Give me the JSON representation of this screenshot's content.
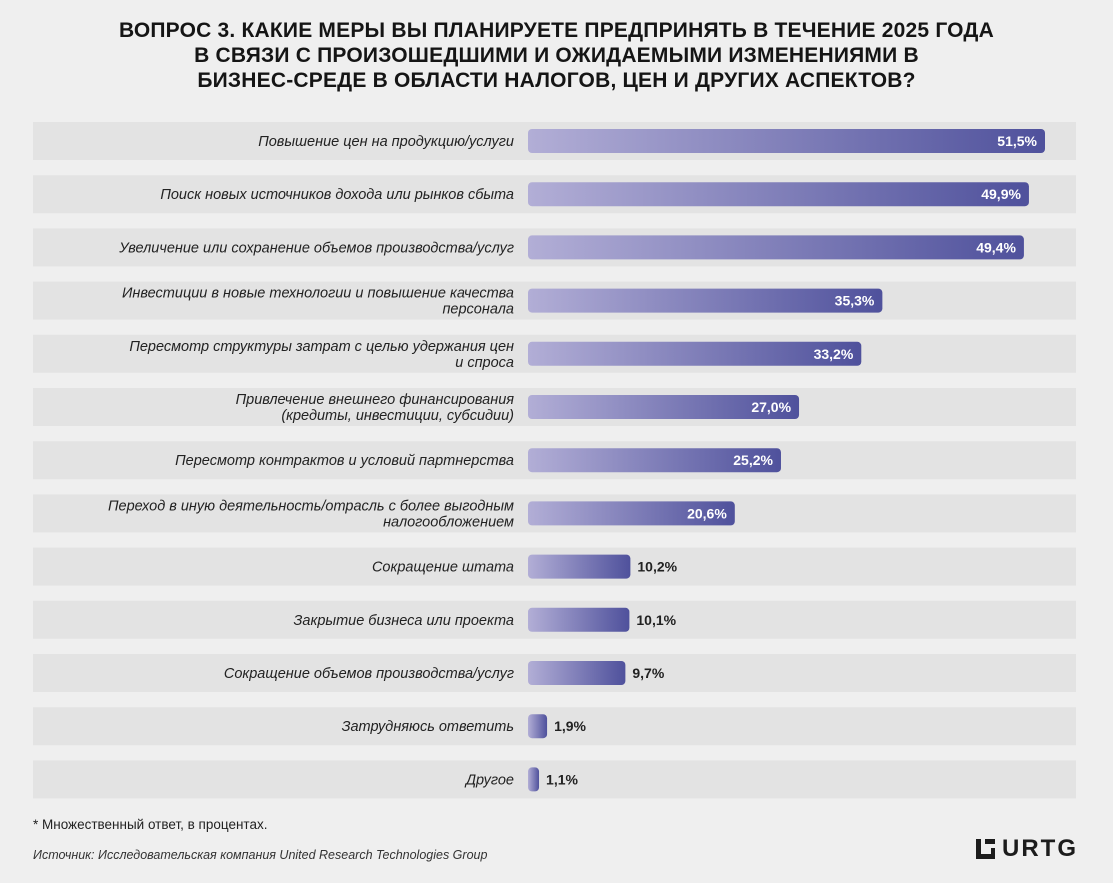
{
  "title_lines": [
    "ВОПРОС 3. КАКИЕ МЕРЫ  ВЫ ПЛАНИРУЕТЕ ПРЕДПРИНЯТЬ В ТЕЧЕНИЕ 2025 ГОДА",
    "В СВЯЗИ С ПРОИЗОШЕДШИМИ  И ОЖИДАЕМЫМИ ИЗМЕНЕНИЯМИ В",
    "БИЗНЕС-СРЕДЕ В ОБЛАСТИ НАЛОГОВ, ЦЕН И ДРУГИХ АСПЕКТОВ?"
  ],
  "footnote": "* Множественный ответ, в процентах.",
  "source": "Источник: Исследовательская компания United Research Technologies Group",
  "logo": {
    "text": "URTG",
    "icon": "urtg-logo-mark"
  },
  "colors": {
    "bar_start": "#b2aed6",
    "bar_end": "#4f519c",
    "row_bg": "#e3e3e3",
    "background": "#efefef"
  },
  "chart_data": {
    "type": "bar",
    "orientation": "horizontal",
    "xlim": [
      0,
      51.5
    ],
    "categories": [
      [
        "Повышение цен на продукцию/услуги"
      ],
      [
        "Поиск новых источников дохода или рынков сбыта"
      ],
      [
        "Увеличение или сохранение объемов производства/услуг"
      ],
      [
        "Инвестиции в новые технологии и повышение качества",
        "персонала"
      ],
      [
        "Пересмотр структуры затрат с целью удержания цен",
        "и спроса"
      ],
      [
        "Привлечение внешнего финансирования",
        "(кредиты, инвестиции, субсидии)"
      ],
      [
        "Пересмотр контрактов и условий партнерства"
      ],
      [
        "Переход в иную деятельность/отрасль с более выгодным",
        "налогообложением"
      ],
      [
        "Сокращение штата"
      ],
      [
        "Закрытие бизнеса или проекта"
      ],
      [
        "Сокращение объемов производства/услуг"
      ],
      [
        "Затрудняюсь ответить"
      ],
      [
        "Другое"
      ]
    ],
    "values": [
      51.5,
      49.9,
      49.4,
      35.3,
      33.2,
      27.0,
      25.2,
      20.6,
      10.2,
      10.1,
      9.7,
      1.9,
      1.1
    ],
    "value_labels": [
      "51,5%",
      "49,9%",
      "49,4%",
      "35,3%",
      "33,2%",
      "27,0%",
      "25,2%",
      "20,6%",
      "10,2%",
      "10,1%",
      "9,7%",
      "1,9%",
      "1,1%"
    ]
  }
}
